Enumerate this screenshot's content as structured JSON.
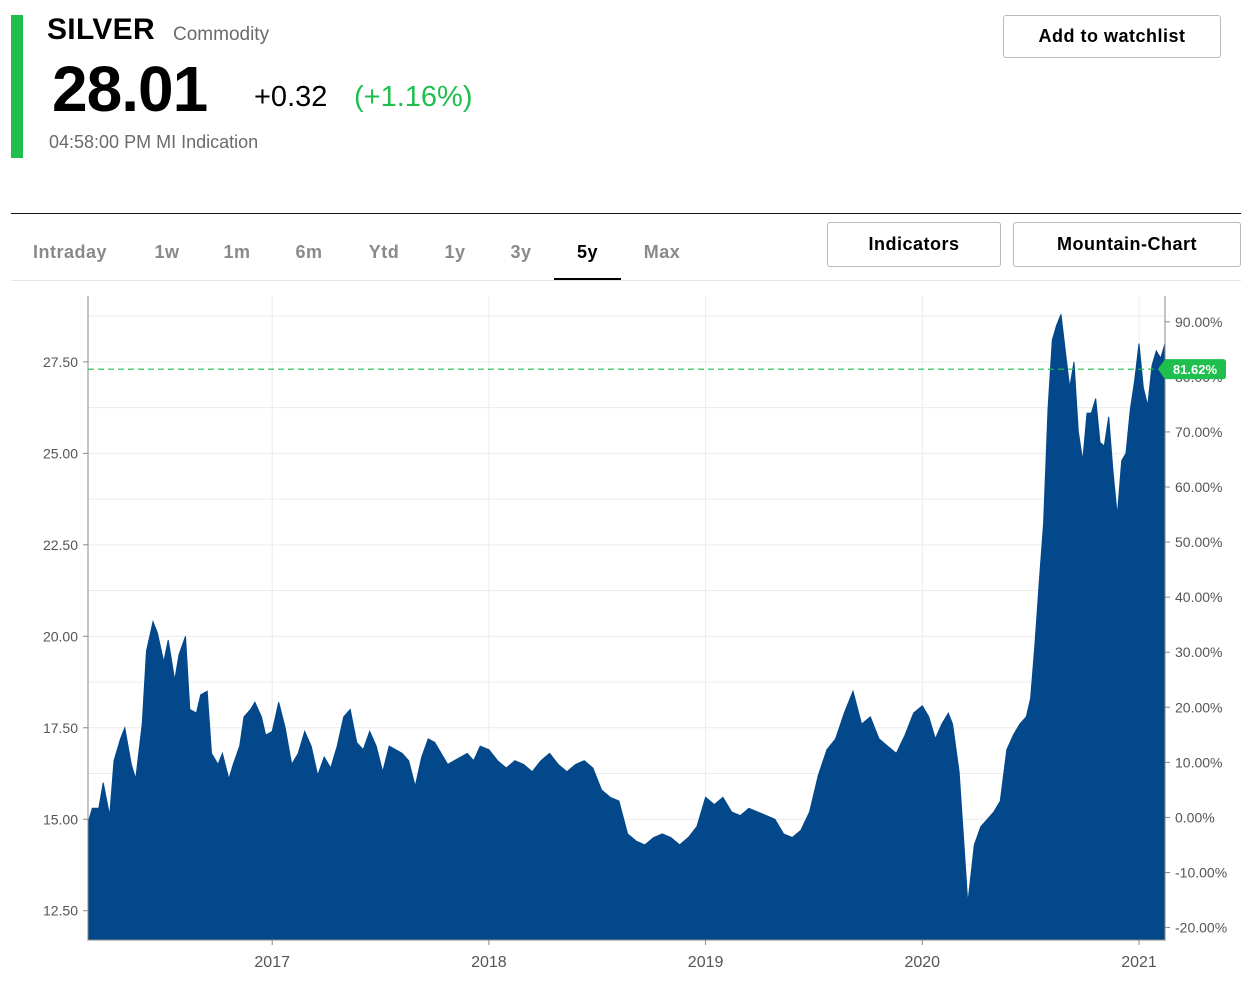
{
  "header": {
    "name": "SILVER",
    "type": "Commodity",
    "price": "28.01",
    "change": "+0.32",
    "change_pct": "(+1.16%)",
    "time": "04:58:00 PM MI Indication",
    "watchlist_label": "Add to watchlist",
    "accent_color": "#1fbf4e"
  },
  "tabs": [
    "Intraday",
    "1w",
    "1m",
    "6m",
    "Ytd",
    "1y",
    "3y",
    "5y",
    "Max"
  ],
  "active_tab": "5y",
  "buttons": {
    "indicators": "Indicators",
    "mountain": "Mountain-Chart"
  },
  "chart_data": {
    "type": "area",
    "color": "#03488a",
    "left_axis": {
      "ticks": [
        "27.50",
        "25.00",
        "22.50",
        "20.00",
        "17.50",
        "15.00",
        "12.50"
      ],
      "range": [
        11.7,
        29.3
      ]
    },
    "right_axis": {
      "ticks": [
        "90.00%",
        "80.00%",
        "70.00%",
        "60.00%",
        "50.00%",
        "40.00%",
        "30.00%",
        "20.00%",
        "10.00%",
        "0.00%",
        "-10.00%",
        "-20.00%"
      ]
    },
    "x_ticks": [
      "2017",
      "2018",
      "2019",
      "2020",
      "2021"
    ],
    "x_range": [
      2016.15,
      2021.12
    ],
    "reference_value": 27.3,
    "reference_label": "81.62%",
    "reference_color": "#1fbf4e",
    "grid": true,
    "series": [
      {
        "x": [
          2016.15,
          2016.17,
          2016.2,
          2016.22,
          2016.25,
          2016.27,
          2016.3,
          2016.32,
          2016.35,
          2016.37,
          2016.4,
          2016.42,
          2016.45,
          2016.47,
          2016.5,
          2016.52,
          2016.55,
          2016.57,
          2016.6,
          2016.62,
          2016.65,
          2016.67,
          2016.7,
          2016.72,
          2016.75,
          2016.77,
          2016.8,
          2016.82,
          2016.85,
          2016.87,
          2016.9,
          2016.92,
          2016.95,
          2016.97,
          2017.0,
          2017.03,
          2017.06,
          2017.09,
          2017.12,
          2017.15,
          2017.18,
          2017.21,
          2017.24,
          2017.27,
          2017.3,
          2017.33,
          2017.36,
          2017.39,
          2017.42,
          2017.45,
          2017.48,
          2017.51,
          2017.54,
          2017.57,
          2017.6,
          2017.63,
          2017.66,
          2017.69,
          2017.72,
          2017.75,
          2017.78,
          2017.81,
          2017.84,
          2017.87,
          2017.9,
          2017.93,
          2017.96,
          2018.0,
          2018.04,
          2018.08,
          2018.12,
          2018.16,
          2018.2,
          2018.24,
          2018.28,
          2018.32,
          2018.36,
          2018.4,
          2018.44,
          2018.48,
          2018.52,
          2018.56,
          2018.6,
          2018.64,
          2018.68,
          2018.72,
          2018.76,
          2018.8,
          2018.84,
          2018.88,
          2018.92,
          2018.96,
          2019.0,
          2019.04,
          2019.08,
          2019.12,
          2019.16,
          2019.2,
          2019.24,
          2019.28,
          2019.32,
          2019.36,
          2019.4,
          2019.44,
          2019.48,
          2019.52,
          2019.56,
          2019.6,
          2019.64,
          2019.68,
          2019.72,
          2019.76,
          2019.8,
          2019.84,
          2019.88,
          2019.92,
          2019.96,
          2020.0,
          2020.03,
          2020.06,
          2020.09,
          2020.12,
          2020.14,
          2020.17,
          2020.19,
          2020.21,
          2020.24,
          2020.27,
          2020.3,
          2020.33,
          2020.36,
          2020.39,
          2020.42,
          2020.45,
          2020.48,
          2020.5,
          2020.52,
          2020.54,
          2020.56,
          2020.58,
          2020.6,
          2020.62,
          2020.64,
          2020.66,
          2020.68,
          2020.7,
          2020.72,
          2020.74,
          2020.76,
          2020.78,
          2020.8,
          2020.82,
          2020.84,
          2020.86,
          2020.88,
          2020.9,
          2020.92,
          2020.94,
          2020.96,
          2020.98,
          2021.0,
          2021.02,
          2021.04,
          2021.06,
          2021.08,
          2021.1,
          2021.12
        ],
        "y": [
          14.9,
          15.3,
          15.3,
          16.0,
          15.1,
          16.6,
          17.2,
          17.5,
          16.5,
          16.1,
          17.6,
          19.6,
          20.4,
          20.1,
          19.3,
          19.9,
          18.8,
          19.5,
          20.0,
          18.0,
          17.9,
          18.4,
          18.5,
          16.8,
          16.5,
          16.8,
          16.1,
          16.5,
          17.0,
          17.8,
          18.0,
          18.2,
          17.8,
          17.3,
          17.4,
          18.2,
          17.5,
          16.5,
          16.8,
          17.4,
          17.0,
          16.2,
          16.7,
          16.4,
          17.0,
          17.8,
          18.0,
          17.1,
          16.9,
          17.4,
          17.0,
          16.3,
          17.0,
          16.9,
          16.8,
          16.6,
          15.9,
          16.7,
          17.2,
          17.1,
          16.8,
          16.5,
          16.6,
          16.7,
          16.8,
          16.6,
          17.0,
          16.9,
          16.6,
          16.4,
          16.6,
          16.5,
          16.3,
          16.6,
          16.8,
          16.5,
          16.3,
          16.5,
          16.6,
          16.4,
          15.8,
          15.6,
          15.5,
          14.6,
          14.4,
          14.3,
          14.5,
          14.6,
          14.5,
          14.3,
          14.5,
          14.8,
          15.6,
          15.4,
          15.6,
          15.2,
          15.1,
          15.3,
          15.2,
          15.1,
          15.0,
          14.6,
          14.5,
          14.7,
          15.2,
          16.2,
          16.9,
          17.2,
          17.9,
          18.5,
          17.6,
          17.8,
          17.2,
          17.0,
          16.8,
          17.3,
          17.9,
          18.1,
          17.8,
          17.2,
          17.6,
          17.9,
          17.6,
          16.3,
          14.5,
          12.7,
          14.3,
          14.8,
          15.0,
          15.2,
          15.5,
          16.9,
          17.3,
          17.6,
          17.8,
          18.3,
          19.8,
          21.5,
          23.1,
          26.2,
          28.1,
          28.5,
          28.8,
          27.8,
          26.8,
          27.5,
          25.6,
          24.8,
          26.1,
          26.1,
          26.5,
          25.3,
          25.2,
          26.0,
          24.5,
          23.3,
          24.8,
          25.0,
          26.2,
          27.0,
          28.0,
          26.8,
          26.3,
          27.4,
          27.8,
          27.6,
          28.0
        ]
      }
    ]
  }
}
